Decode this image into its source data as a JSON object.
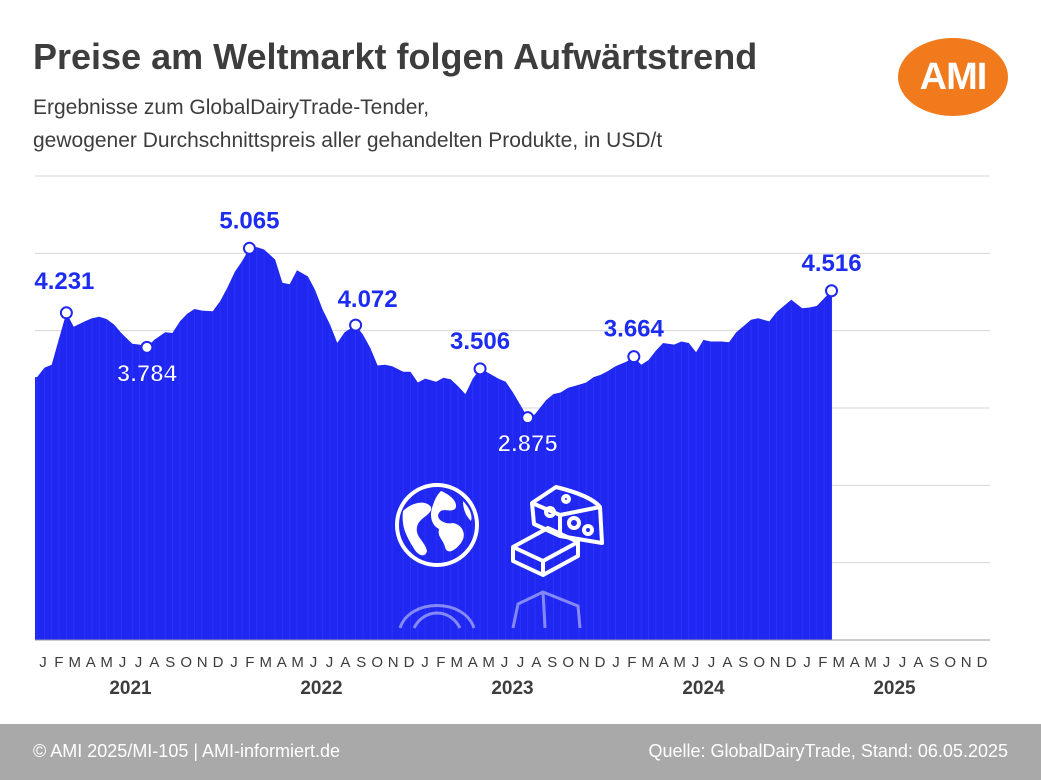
{
  "header": {
    "title": "Preise am Weltmarkt folgen Aufwärtstrend",
    "subtitle_line1": "Ergebnisse zum GlobalDairyTrade-Tender,",
    "subtitle_line2": "gewogener Durchschnittspreis aller gehandelten Produkte, in USD/t",
    "logo_text": "AMI"
  },
  "footer": {
    "copyright": "© AMI 2025/MI-105 | AMI-informiert.de",
    "source": "Quelle: GlobalDairyTrade, Stand: 06.05.2025"
  },
  "colors": {
    "area": "#1f27f0",
    "label": "#1c2cf2",
    "logo": "#f07a1c",
    "footer": "#a9a9a9"
  },
  "icons": [
    "globe-icon",
    "cheese-icon",
    "butter-block-icon"
  ],
  "chart_data": {
    "type": "area",
    "title": "Preise am Weltmarkt folgen Aufwärtstrend",
    "ylabel": "USD/t",
    "ylim": [
      0,
      6000
    ],
    "grid": true,
    "month_ticks": [
      "J",
      "F",
      "M",
      "A",
      "M",
      "J",
      "J",
      "A",
      "S",
      "O",
      "N",
      "D"
    ],
    "years": [
      "2021",
      "2022",
      "2023",
      "2024",
      "2025"
    ],
    "x_range": [
      "2021-01",
      "2025-12"
    ],
    "series": [
      {
        "points": [
          {
            "x": "2021-01-05",
            "y": 3400
          },
          {
            "x": "2021-01-19",
            "y": 3520
          },
          {
            "x": "2021-02-02",
            "y": 3560
          },
          {
            "x": "2021-02-16",
            "y": 3900
          },
          {
            "x": "2021-03-02",
            "y": 4231
          },
          {
            "x": "2021-03-16",
            "y": 4050
          },
          {
            "x": "2021-04-06",
            "y": 4120
          },
          {
            "x": "2021-04-20",
            "y": 4160
          },
          {
            "x": "2021-05-04",
            "y": 4180
          },
          {
            "x": "2021-05-18",
            "y": 4150
          },
          {
            "x": "2021-06-01",
            "y": 4080
          },
          {
            "x": "2021-06-15",
            "y": 3970
          },
          {
            "x": "2021-07-06",
            "y": 3830
          },
          {
            "x": "2021-07-20",
            "y": 3820
          },
          {
            "x": "2021-08-03",
            "y": 3784
          },
          {
            "x": "2021-08-17",
            "y": 3880
          },
          {
            "x": "2021-09-07",
            "y": 3980
          },
          {
            "x": "2021-09-21",
            "y": 3970
          },
          {
            "x": "2021-10-05",
            "y": 4120
          },
          {
            "x": "2021-10-19",
            "y": 4220
          },
          {
            "x": "2021-11-02",
            "y": 4280
          },
          {
            "x": "2021-11-16",
            "y": 4260
          },
          {
            "x": "2021-12-07",
            "y": 4250
          },
          {
            "x": "2021-12-21",
            "y": 4380
          },
          {
            "x": "2022-01-04",
            "y": 4560
          },
          {
            "x": "2022-01-18",
            "y": 4760
          },
          {
            "x": "2022-02-01",
            "y": 4900
          },
          {
            "x": "2022-02-15",
            "y": 5065
          },
          {
            "x": "2022-03-01",
            "y": 5080
          },
          {
            "x": "2022-03-15",
            "y": 5050
          },
          {
            "x": "2022-04-05",
            "y": 4920
          },
          {
            "x": "2022-04-19",
            "y": 4620
          },
          {
            "x": "2022-05-03",
            "y": 4600
          },
          {
            "x": "2022-05-17",
            "y": 4780
          },
          {
            "x": "2022-06-07",
            "y": 4700
          },
          {
            "x": "2022-06-21",
            "y": 4520
          },
          {
            "x": "2022-07-05",
            "y": 4270
          },
          {
            "x": "2022-07-19",
            "y": 4080
          },
          {
            "x": "2022-08-02",
            "y": 3840
          },
          {
            "x": "2022-08-16",
            "y": 3980
          },
          {
            "x": "2022-09-06",
            "y": 4072
          },
          {
            "x": "2022-09-20",
            "y": 3950
          },
          {
            "x": "2022-10-04",
            "y": 3780
          },
          {
            "x": "2022-10-18",
            "y": 3550
          },
          {
            "x": "2022-11-01",
            "y": 3560
          },
          {
            "x": "2022-11-15",
            "y": 3540
          },
          {
            "x": "2022-12-06",
            "y": 3470
          },
          {
            "x": "2022-12-20",
            "y": 3470
          },
          {
            "x": "2023-01-03",
            "y": 3330
          },
          {
            "x": "2023-01-17",
            "y": 3380
          },
          {
            "x": "2023-02-07",
            "y": 3340
          },
          {
            "x": "2023-02-21",
            "y": 3390
          },
          {
            "x": "2023-03-07",
            "y": 3370
          },
          {
            "x": "2023-03-21",
            "y": 3280
          },
          {
            "x": "2023-04-04",
            "y": 3180
          },
          {
            "x": "2023-04-18",
            "y": 3380
          },
          {
            "x": "2023-05-02",
            "y": 3506
          },
          {
            "x": "2023-05-16",
            "y": 3460
          },
          {
            "x": "2023-06-06",
            "y": 3380
          },
          {
            "x": "2023-06-20",
            "y": 3340
          },
          {
            "x": "2023-07-04",
            "y": 3200
          },
          {
            "x": "2023-07-18",
            "y": 3040
          },
          {
            "x": "2023-08-01",
            "y": 2875
          },
          {
            "x": "2023-08-15",
            "y": 2920
          },
          {
            "x": "2023-09-05",
            "y": 3100
          },
          {
            "x": "2023-09-19",
            "y": 3180
          },
          {
            "x": "2023-10-03",
            "y": 3200
          },
          {
            "x": "2023-10-17",
            "y": 3260
          },
          {
            "x": "2023-11-07",
            "y": 3300
          },
          {
            "x": "2023-11-21",
            "y": 3330
          },
          {
            "x": "2023-12-05",
            "y": 3400
          },
          {
            "x": "2023-12-19",
            "y": 3430
          },
          {
            "x": "2024-01-02",
            "y": 3480
          },
          {
            "x": "2024-01-16",
            "y": 3540
          },
          {
            "x": "2024-02-06",
            "y": 3600
          },
          {
            "x": "2024-02-20",
            "y": 3664
          },
          {
            "x": "2024-03-05",
            "y": 3560
          },
          {
            "x": "2024-03-19",
            "y": 3620
          },
          {
            "x": "2024-04-02",
            "y": 3740
          },
          {
            "x": "2024-04-16",
            "y": 3840
          },
          {
            "x": "2024-05-07",
            "y": 3820
          },
          {
            "x": "2024-05-21",
            "y": 3860
          },
          {
            "x": "2024-06-04",
            "y": 3840
          },
          {
            "x": "2024-06-18",
            "y": 3720
          },
          {
            "x": "2024-07-02",
            "y": 3880
          },
          {
            "x": "2024-07-16",
            "y": 3860
          },
          {
            "x": "2024-08-06",
            "y": 3860
          },
          {
            "x": "2024-08-20",
            "y": 3850
          },
          {
            "x": "2024-09-03",
            "y": 3980
          },
          {
            "x": "2024-09-17",
            "y": 4060
          },
          {
            "x": "2024-10-01",
            "y": 4140
          },
          {
            "x": "2024-10-15",
            "y": 4160
          },
          {
            "x": "2024-11-05",
            "y": 4120
          },
          {
            "x": "2024-11-19",
            "y": 4240
          },
          {
            "x": "2024-12-03",
            "y": 4320
          },
          {
            "x": "2024-12-17",
            "y": 4400
          },
          {
            "x": "2025-01-07",
            "y": 4290
          },
          {
            "x": "2025-01-21",
            "y": 4300
          },
          {
            "x": "2025-02-04",
            "y": 4320
          },
          {
            "x": "2025-02-18",
            "y": 4420
          },
          {
            "x": "2025-03-04",
            "y": 4516
          }
        ]
      }
    ],
    "annotations": [
      {
        "date": "2021-03-02",
        "value": 4231,
        "text": "4.231",
        "position": "above-left"
      },
      {
        "date": "2021-08-03",
        "value": 3784,
        "text": "3.784",
        "position": "below"
      },
      {
        "date": "2022-02-15",
        "value": 5065,
        "text": "5.065",
        "position": "above"
      },
      {
        "date": "2022-09-06",
        "value": 4072,
        "text": "4.072",
        "position": "above-right"
      },
      {
        "date": "2023-05-02",
        "value": 3506,
        "text": "3.506",
        "position": "above"
      },
      {
        "date": "2023-08-01",
        "value": 2875,
        "text": "2.875",
        "position": "below"
      },
      {
        "date": "2024-02-20",
        "value": 3664,
        "text": "3.664",
        "position": "above"
      },
      {
        "date": "2025-03-04",
        "value": 4516,
        "text": "4.516",
        "position": "above"
      }
    ]
  }
}
